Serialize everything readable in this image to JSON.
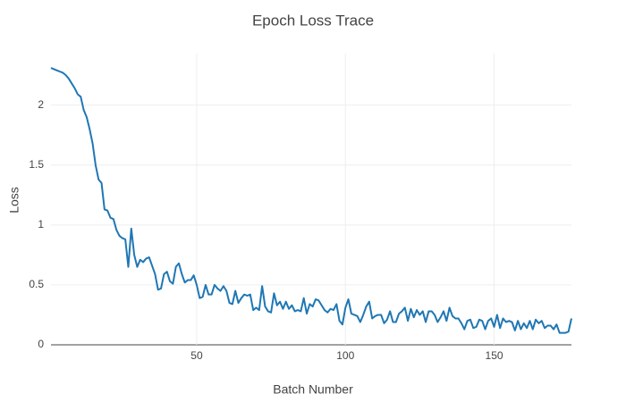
{
  "chart_data": {
    "type": "line",
    "title": "Epoch Loss Trace",
    "x_label": "Batch Number",
    "y_label": "Loss",
    "xlim": [
      1,
      176
    ],
    "ylim": [
      0,
      2.43
    ],
    "xticks": [
      50,
      100,
      150
    ],
    "yticks": [
      0,
      0.5,
      1,
      1.5,
      2
    ],
    "grid": true,
    "x": [
      1,
      2,
      3,
      4,
      5,
      6,
      7,
      8,
      9,
      10,
      11,
      12,
      13,
      14,
      15,
      16,
      17,
      18,
      19,
      20,
      21,
      22,
      23,
      24,
      25,
      26,
      27,
      28,
      29,
      30,
      31,
      32,
      33,
      34,
      35,
      36,
      37,
      38,
      39,
      40,
      41,
      42,
      43,
      44,
      45,
      46,
      47,
      48,
      49,
      50,
      51,
      52,
      53,
      54,
      55,
      56,
      57,
      58,
      59,
      60,
      61,
      62,
      63,
      64,
      65,
      66,
      67,
      68,
      69,
      70,
      71,
      72,
      73,
      74,
      75,
      76,
      77,
      78,
      79,
      80,
      81,
      82,
      83,
      84,
      85,
      86,
      87,
      88,
      89,
      90,
      91,
      92,
      93,
      94,
      95,
      96,
      97,
      98,
      99,
      100,
      101,
      102,
      103,
      104,
      105,
      106,
      107,
      108,
      109,
      110,
      111,
      112,
      113,
      114,
      115,
      116,
      117,
      118,
      119,
      120,
      121,
      122,
      123,
      124,
      125,
      126,
      127,
      128,
      129,
      130,
      131,
      132,
      133,
      134,
      135,
      136,
      137,
      138,
      139,
      140,
      141,
      142,
      143,
      144,
      145,
      146,
      147,
      148,
      149,
      150,
      151,
      152,
      153,
      154,
      155,
      156,
      157,
      158,
      159,
      160,
      161,
      162,
      163,
      164,
      165,
      166,
      167,
      168,
      169,
      170,
      171,
      172,
      173,
      174,
      175,
      176
    ],
    "series": [
      {
        "color": "#1f77b4",
        "values": [
          2.31,
          2.3,
          2.29,
          2.28,
          2.27,
          2.25,
          2.22,
          2.18,
          2.14,
          2.09,
          2.07,
          1.96,
          1.9,
          1.8,
          1.68,
          1.5,
          1.38,
          1.35,
          1.13,
          1.12,
          1.06,
          1.05,
          0.96,
          0.91,
          0.89,
          0.88,
          0.65,
          0.97,
          0.75,
          0.65,
          0.71,
          0.69,
          0.72,
          0.73,
          0.66,
          0.59,
          0.46,
          0.47,
          0.59,
          0.61,
          0.53,
          0.51,
          0.65,
          0.68,
          0.59,
          0.52,
          0.54,
          0.54,
          0.58,
          0.5,
          0.39,
          0.4,
          0.5,
          0.42,
          0.42,
          0.5,
          0.47,
          0.45,
          0.49,
          0.45,
          0.35,
          0.34,
          0.45,
          0.35,
          0.39,
          0.42,
          0.41,
          0.42,
          0.29,
          0.31,
          0.29,
          0.49,
          0.32,
          0.28,
          0.27,
          0.43,
          0.33,
          0.36,
          0.3,
          0.36,
          0.3,
          0.33,
          0.28,
          0.29,
          0.28,
          0.39,
          0.26,
          0.34,
          0.32,
          0.38,
          0.37,
          0.33,
          0.29,
          0.27,
          0.3,
          0.29,
          0.34,
          0.2,
          0.17,
          0.31,
          0.38,
          0.26,
          0.25,
          0.24,
          0.19,
          0.25,
          0.32,
          0.36,
          0.22,
          0.24,
          0.25,
          0.25,
          0.18,
          0.21,
          0.28,
          0.19,
          0.19,
          0.26,
          0.28,
          0.31,
          0.2,
          0.3,
          0.23,
          0.29,
          0.25,
          0.28,
          0.19,
          0.28,
          0.28,
          0.25,
          0.19,
          0.23,
          0.28,
          0.2,
          0.31,
          0.24,
          0.22,
          0.22,
          0.18,
          0.13,
          0.2,
          0.21,
          0.14,
          0.15,
          0.21,
          0.2,
          0.13,
          0.2,
          0.22,
          0.15,
          0.25,
          0.14,
          0.22,
          0.19,
          0.2,
          0.19,
          0.12,
          0.2,
          0.13,
          0.18,
          0.14,
          0.2,
          0.13,
          0.21,
          0.18,
          0.2,
          0.14,
          0.16,
          0.16,
          0.13,
          0.17,
          0.1,
          0.1,
          0.1,
          0.11,
          0.22
        ]
      }
    ]
  }
}
